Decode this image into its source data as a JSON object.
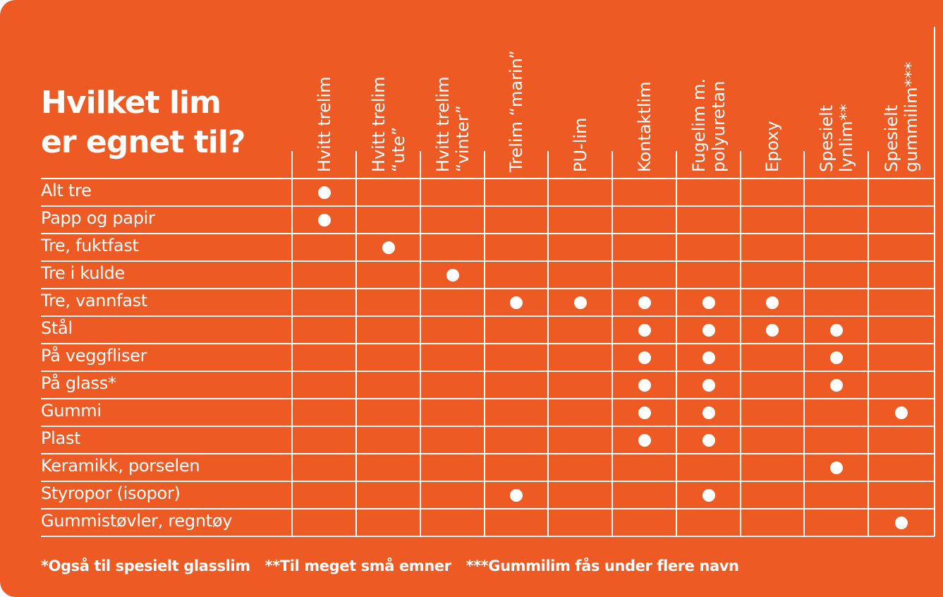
{
  "title": {
    "line1": "Hvilket lim",
    "line2": "er egnet til?"
  },
  "columns": [
    {
      "lines": [
        "Hvitt trelim"
      ]
    },
    {
      "lines": [
        "Hvitt trelim",
        "“ute”"
      ]
    },
    {
      "lines": [
        "Hvitt trelim",
        "“vinter”"
      ]
    },
    {
      "lines": [
        "Trelim “marin”"
      ]
    },
    {
      "lines": [
        "PU-lim"
      ]
    },
    {
      "lines": [
        "Kontaktlim"
      ]
    },
    {
      "lines": [
        "Fugelim m.",
        "polyuretan"
      ]
    },
    {
      "lines": [
        "Epoxy"
      ]
    },
    {
      "lines": [
        "Spesielt",
        "lynlim**"
      ]
    },
    {
      "lines": [
        "Spesielt",
        "gummilim***"
      ]
    }
  ],
  "rows": [
    {
      "label": "Alt tre",
      "marks": [
        true,
        false,
        false,
        false,
        false,
        false,
        false,
        false,
        false,
        false
      ]
    },
    {
      "label": "Papp og papir",
      "marks": [
        true,
        false,
        false,
        false,
        false,
        false,
        false,
        false,
        false,
        false
      ]
    },
    {
      "label": "Tre, fuktfast",
      "marks": [
        false,
        true,
        false,
        false,
        false,
        false,
        false,
        false,
        false,
        false
      ]
    },
    {
      "label": "Tre i kulde",
      "marks": [
        false,
        false,
        true,
        false,
        false,
        false,
        false,
        false,
        false,
        false
      ]
    },
    {
      "label": "Tre, vannfast",
      "marks": [
        false,
        false,
        false,
        true,
        true,
        true,
        true,
        true,
        false,
        false
      ]
    },
    {
      "label": "Stål",
      "marks": [
        false,
        false,
        false,
        false,
        false,
        true,
        true,
        true,
        true,
        false
      ]
    },
    {
      "label": "På veggfliser",
      "marks": [
        false,
        false,
        false,
        false,
        false,
        true,
        true,
        false,
        true,
        false
      ]
    },
    {
      "label": "På glass*",
      "marks": [
        false,
        false,
        false,
        false,
        false,
        true,
        true,
        false,
        true,
        false
      ]
    },
    {
      "label": "Gummi",
      "marks": [
        false,
        false,
        false,
        false,
        false,
        true,
        true,
        false,
        false,
        true
      ]
    },
    {
      "label": "Plast",
      "marks": [
        false,
        false,
        false,
        false,
        false,
        true,
        true,
        false,
        false,
        false
      ]
    },
    {
      "label": "Keramikk, porselen",
      "marks": [
        false,
        false,
        false,
        false,
        false,
        false,
        false,
        false,
        true,
        false
      ]
    },
    {
      "label": "Styropor (isopor)",
      "marks": [
        false,
        false,
        false,
        true,
        false,
        false,
        true,
        false,
        false,
        false
      ]
    },
    {
      "label": "Gummistøvler, regntøy",
      "marks": [
        false,
        false,
        false,
        false,
        false,
        false,
        false,
        false,
        false,
        true
      ]
    }
  ],
  "footnotes": [
    "*Også til spesielt glasslim",
    "**Til meget små emner",
    "***Gummilim fås under flere navn"
  ],
  "colors": {
    "background": "#ee5a24",
    "lines": "#ffffff",
    "text": "#ffffff"
  }
}
